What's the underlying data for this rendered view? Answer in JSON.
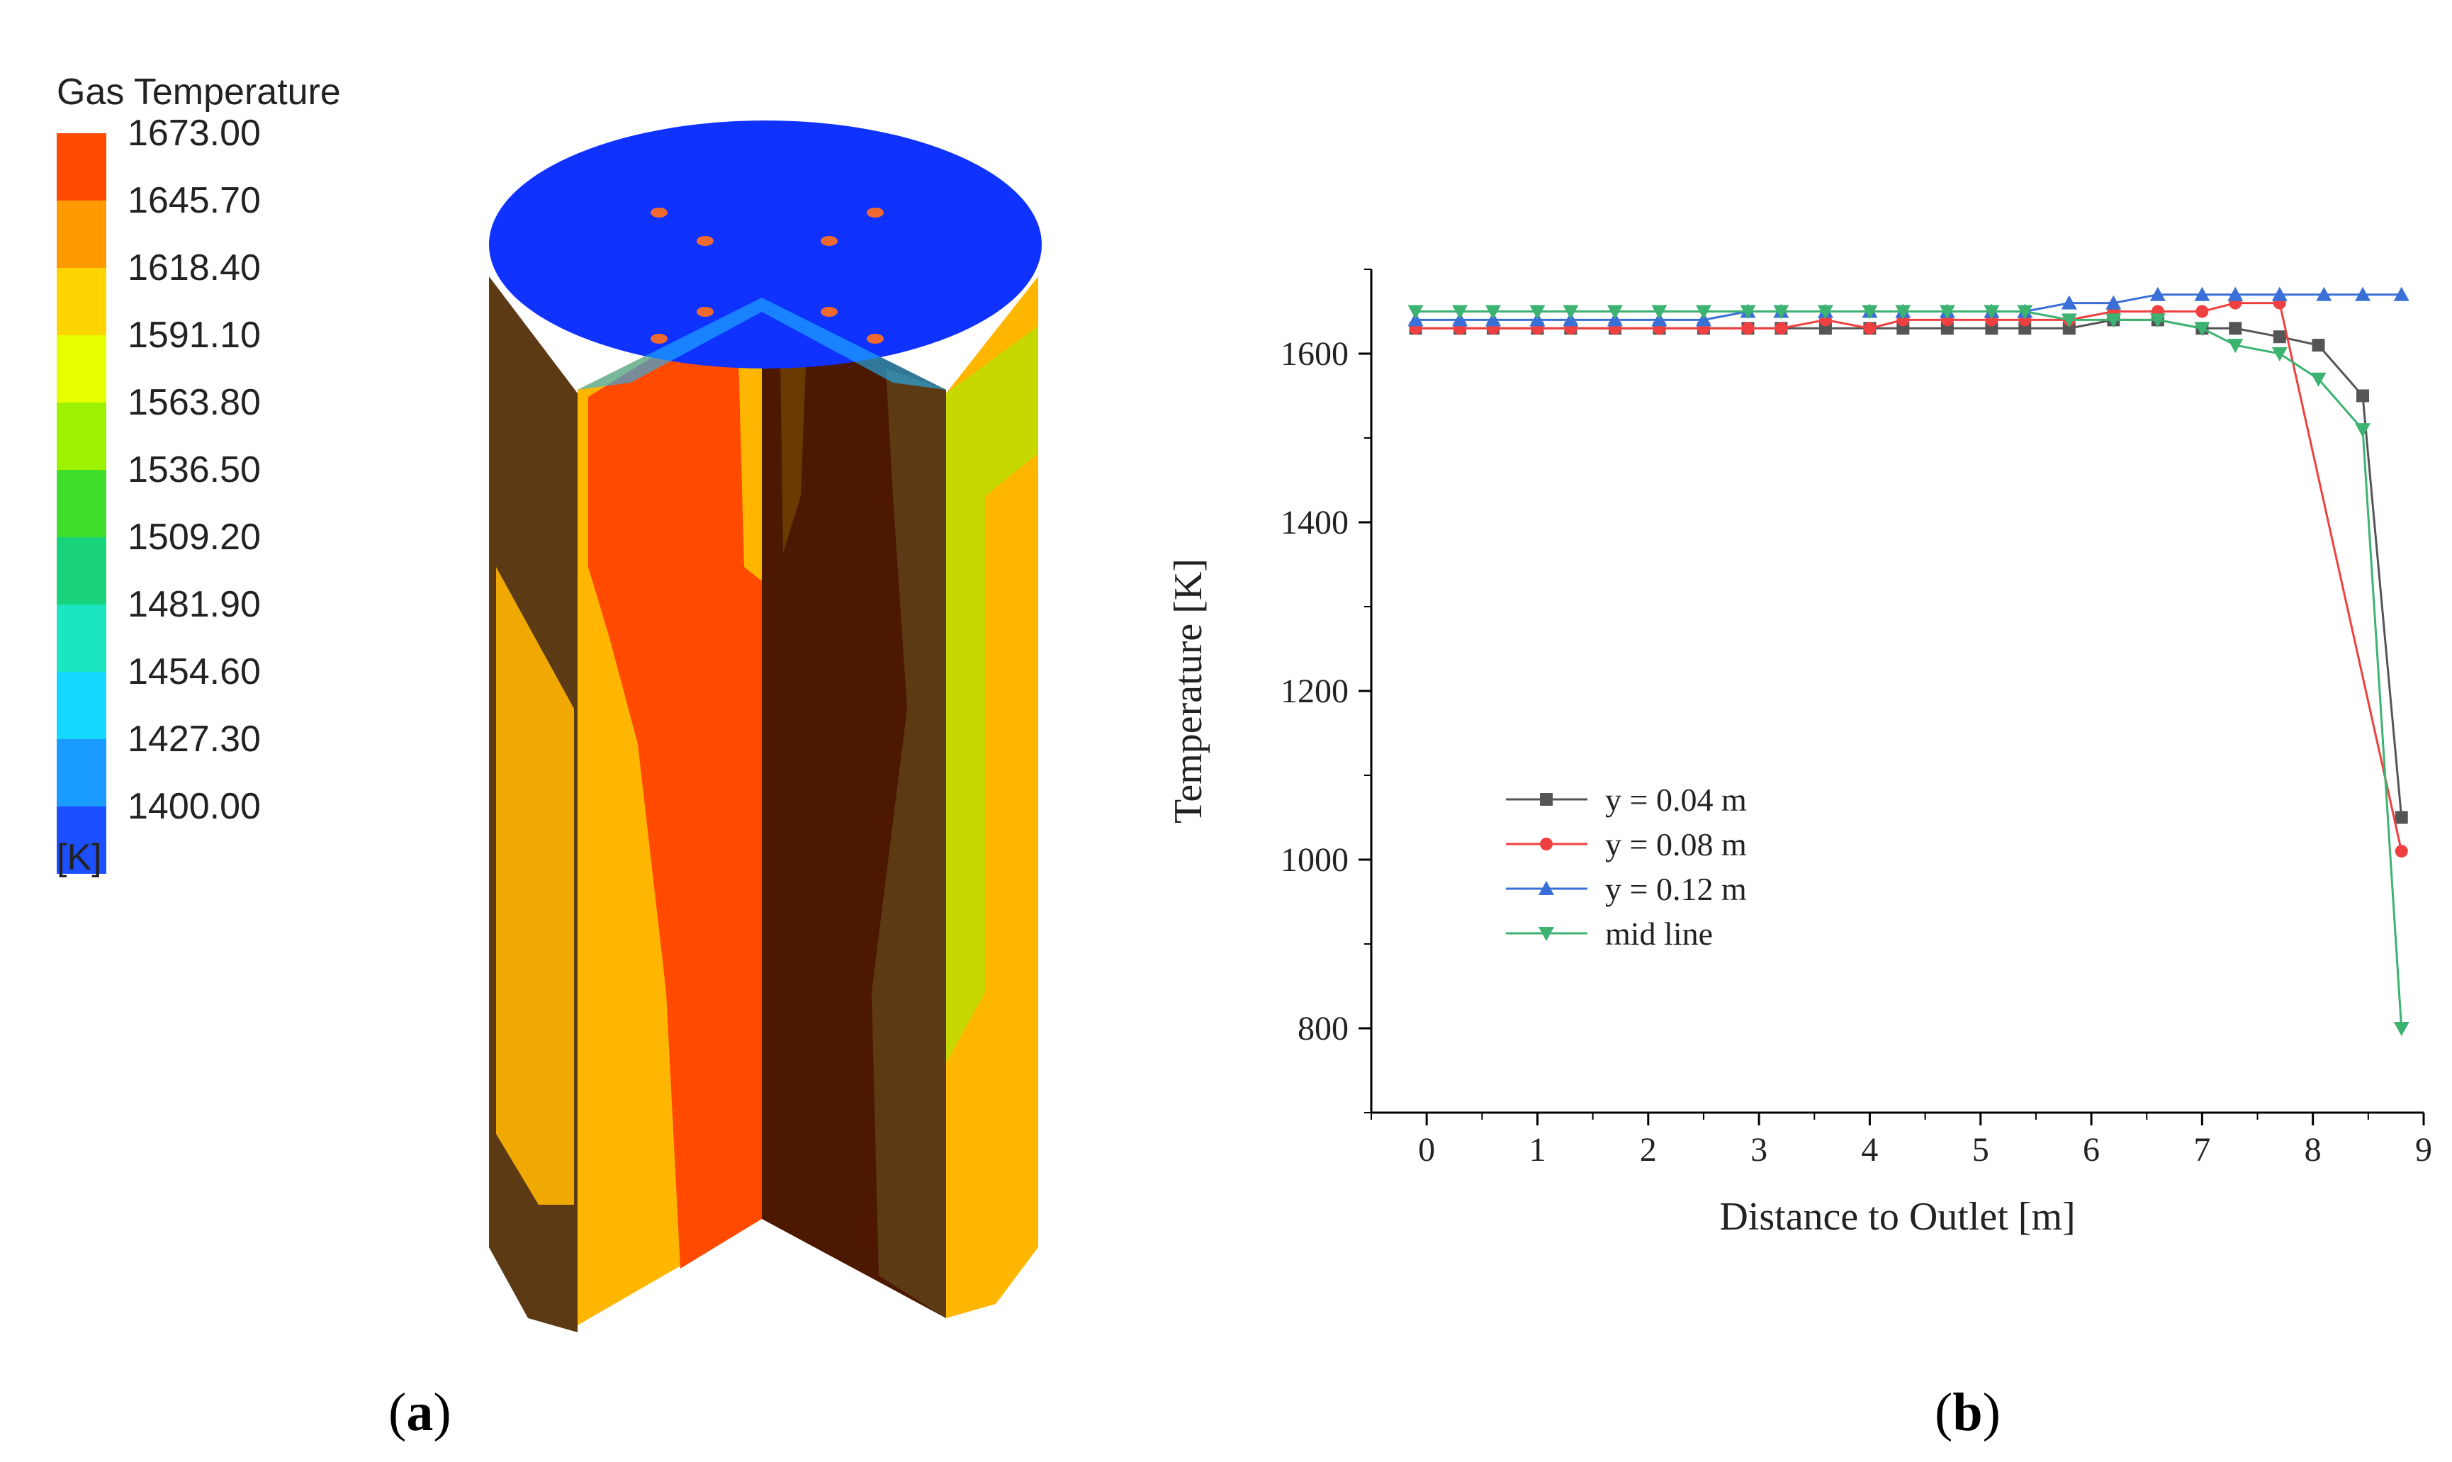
{
  "panel_a": {
    "label_open": "(",
    "label_letter": "a",
    "label_close": ")",
    "colorbar": {
      "title": "Gas Temperature",
      "unit": "[K]",
      "ticks": [
        "1673.00",
        "1645.70",
        "1618.40",
        "1591.10",
        "1563.80",
        "1536.50",
        "1509.20",
        "1481.90",
        "1454.60",
        "1427.30",
        "1400.00"
      ],
      "band_colors": [
        "#ff4a00",
        "#ff9a00",
        "#ffd400",
        "#e8ff00",
        "#9cf200",
        "#3ede2a",
        "#19d37a",
        "#1ce6c2",
        "#14d8ff",
        "#1a9bff",
        "#1c50ff"
      ]
    }
  },
  "panel_b": {
    "label_open": "(",
    "label_letter": "b",
    "label_close": ")"
  },
  "chart_data": {
    "type": "line",
    "title": "",
    "xlabel": "Distance to Outlet [m]",
    "ylabel": "Temperature [K]",
    "xlim": [
      -0.5,
      9
    ],
    "ylim": [
      700,
      1700
    ],
    "xticks": [
      "0",
      "1",
      "2",
      "3",
      "4",
      "5",
      "6",
      "7",
      "8",
      "9"
    ],
    "yticks": [
      "800",
      "1000",
      "1200",
      "1400",
      "1600"
    ],
    "legend_position": "lower-left",
    "grid": false,
    "series": [
      {
        "name": "y = 0.04 m",
        "color": "#555555",
        "marker": "square",
        "x": [
          -0.1,
          0.3,
          0.6,
          1.0,
          1.3,
          1.7,
          2.1,
          2.5,
          2.9,
          3.2,
          3.6,
          4.0,
          4.3,
          4.7,
          5.1,
          5.4,
          5.8,
          6.2,
          6.6,
          7.0,
          7.3,
          7.7,
          8.05,
          8.45,
          8.8
        ],
        "y": [
          1630,
          1630,
          1630,
          1630,
          1630,
          1630,
          1630,
          1630,
          1630,
          1630,
          1630,
          1630,
          1630,
          1630,
          1630,
          1630,
          1630,
          1640,
          1640,
          1630,
          1630,
          1620,
          1610,
          1550,
          1050
        ]
      },
      {
        "name": "y = 0.08 m",
        "color": "#ee4040",
        "marker": "circle",
        "x": [
          -0.1,
          0.3,
          0.6,
          1.0,
          1.3,
          1.7,
          2.1,
          2.5,
          2.9,
          3.2,
          3.6,
          4.0,
          4.3,
          4.7,
          5.1,
          5.4,
          5.8,
          6.2,
          6.6,
          7.0,
          7.3,
          7.7,
          8.8
        ],
        "y": [
          1630,
          1630,
          1630,
          1630,
          1630,
          1630,
          1630,
          1630,
          1630,
          1630,
          1640,
          1630,
          1640,
          1640,
          1640,
          1640,
          1640,
          1650,
          1650,
          1650,
          1660,
          1660,
          1010
        ]
      },
      {
        "name": "y = 0.12 m",
        "color": "#3a6fd8",
        "marker": "triangle-up",
        "x": [
          -0.1,
          0.3,
          0.6,
          1.0,
          1.3,
          1.7,
          2.1,
          2.5,
          2.9,
          3.2,
          3.6,
          4.0,
          4.3,
          4.7,
          5.1,
          5.4,
          5.8,
          6.2,
          6.6,
          7.0,
          7.3,
          7.7,
          8.1,
          8.45,
          8.8
        ],
        "y": [
          1640,
          1640,
          1640,
          1640,
          1640,
          1640,
          1640,
          1640,
          1650,
          1650,
          1650,
          1650,
          1650,
          1650,
          1650,
          1650,
          1660,
          1660,
          1670,
          1670,
          1670,
          1670,
          1670,
          1670,
          1670
        ]
      },
      {
        "name": "mid line",
        "color": "#3cb371",
        "marker": "triangle-down",
        "x": [
          -0.1,
          0.3,
          0.6,
          1.0,
          1.3,
          1.7,
          2.1,
          2.5,
          2.9,
          3.2,
          3.6,
          4.0,
          4.3,
          4.7,
          5.1,
          5.4,
          5.8,
          6.2,
          6.6,
          7.0,
          7.3,
          7.7,
          8.05,
          8.45,
          8.8
        ],
        "y": [
          1650,
          1650,
          1650,
          1650,
          1650,
          1650,
          1650,
          1650,
          1650,
          1650,
          1650,
          1650,
          1650,
          1650,
          1650,
          1650,
          1640,
          1640,
          1640,
          1630,
          1610,
          1600,
          1570,
          1510,
          800
        ]
      }
    ]
  }
}
